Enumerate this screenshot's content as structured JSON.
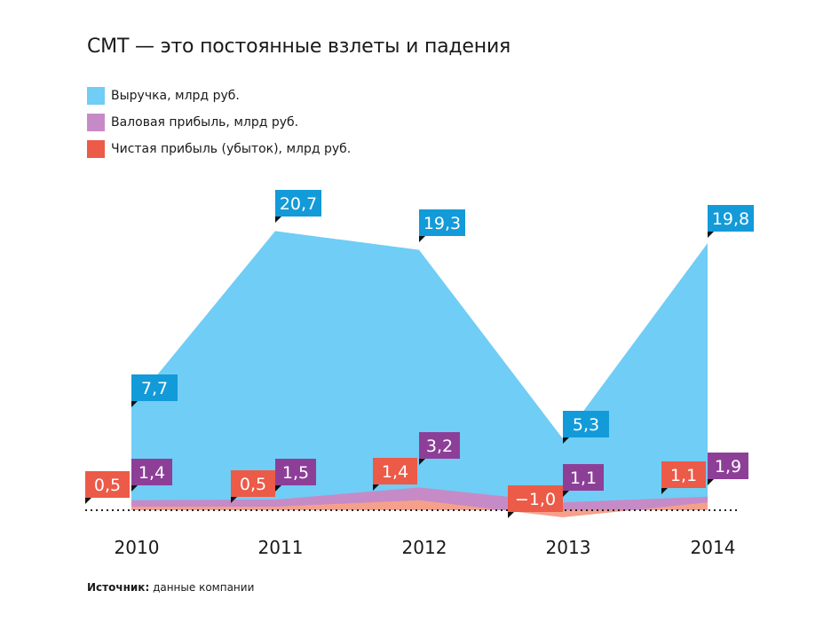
{
  "title": "СМТ — это постоянные взлеты и падения",
  "source": {
    "label": "Источник:",
    "text": " данные компании"
  },
  "colors": {
    "revenue_fill": "#70cdf5",
    "revenue_label": "#139ad8",
    "gross_fill": "#c68bc6",
    "gross_label": "#8d3f98",
    "net_fill": "#f6a08b",
    "net_label": "#ec5a48"
  },
  "chart_data": {
    "type": "area",
    "title": "СМТ — это постоянные взлеты и падения",
    "x": [
      "2010",
      "2011",
      "2012",
      "2013",
      "2014"
    ],
    "series": [
      {
        "name": "Выручка, млрд руб.",
        "key": "revenue",
        "values": [
          7.7,
          20.7,
          19.3,
          5.3,
          19.8
        ],
        "labels": [
          "7,7",
          "20,7",
          "19,3",
          "5,3",
          "19,8"
        ]
      },
      {
        "name": "Валовая прибыль, млрд руб.",
        "key": "gross",
        "values": [
          1.4,
          1.5,
          3.2,
          1.1,
          1.9
        ],
        "labels": [
          "1,4",
          "1,5",
          "3,2",
          "1,1",
          "1,9"
        ]
      },
      {
        "name": "Чистая прибыль (убыток), млрд руб.",
        "key": "net",
        "values": [
          0.5,
          0.5,
          1.4,
          -1.0,
          1.1
        ],
        "labels": [
          "0,5",
          "0,5",
          "1,4",
          "−1,0",
          "1,1"
        ]
      }
    ],
    "ylim": [
      -1.0,
      20.7
    ],
    "grid": false,
    "legend": "top-left",
    "zero_line": "dotted"
  }
}
